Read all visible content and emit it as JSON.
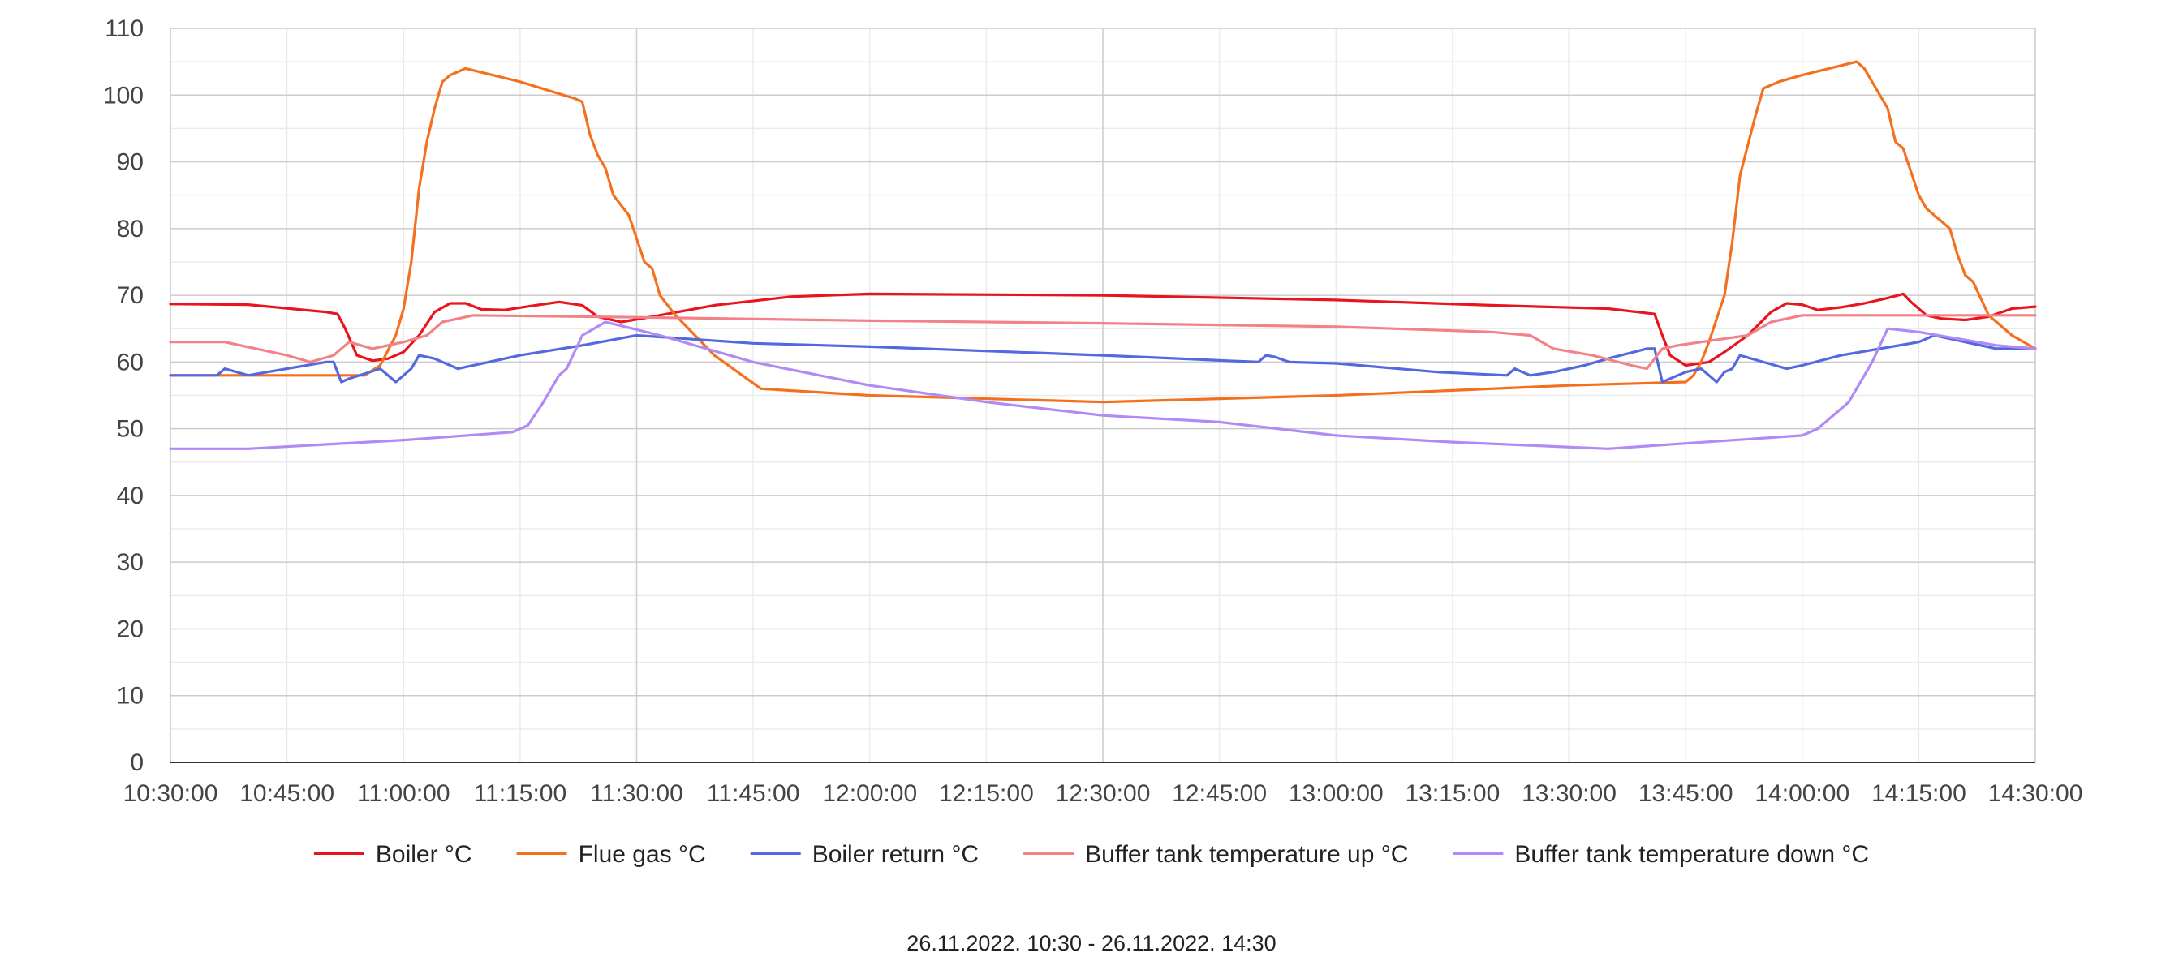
{
  "chart_data": {
    "type": "line",
    "title": "",
    "xlabel": "",
    "ylabel": "",
    "ylim": [
      0,
      110
    ],
    "yticks": [
      0,
      10,
      20,
      30,
      40,
      50,
      60,
      70,
      80,
      90,
      100,
      110
    ],
    "xlim": [
      "10:30:00",
      "14:30:00"
    ],
    "xticks": [
      "10:30:00",
      "10:45:00",
      "11:00:00",
      "11:15:00",
      "11:30:00",
      "11:45:00",
      "12:00:00",
      "12:15:00",
      "12:30:00",
      "12:45:00",
      "13:00:00",
      "13:15:00",
      "13:30:00",
      "13:45:00",
      "14:00:00",
      "14:15:00",
      "14:30:00"
    ],
    "grid": true,
    "legend_position": "bottom",
    "series": [
      {
        "name": "Boiler °C",
        "color": "#e8141e",
        "points": [
          [
            "10:30:00",
            68.7
          ],
          [
            "10:40:00",
            68.6
          ],
          [
            "10:50:00",
            67.5
          ],
          [
            "10:51:30",
            67.2
          ],
          [
            "10:52:30",
            65
          ],
          [
            "10:54:00",
            61
          ],
          [
            "10:56:00",
            60.2
          ],
          [
            "10:58:00",
            60.5
          ],
          [
            "11:00:00",
            61.5
          ],
          [
            "11:02:00",
            64
          ],
          [
            "11:04:00",
            67.5
          ],
          [
            "11:06:00",
            68.8
          ],
          [
            "11:08:00",
            68.8
          ],
          [
            "11:10:00",
            67.9
          ],
          [
            "11:13:00",
            67.8
          ],
          [
            "11:17:00",
            68.5
          ],
          [
            "11:20:00",
            69
          ],
          [
            "11:23:00",
            68.5
          ],
          [
            "11:25:00",
            66.8
          ],
          [
            "11:28:00",
            66
          ],
          [
            "11:32:00",
            66.8
          ],
          [
            "11:40:00",
            68.5
          ],
          [
            "11:50:00",
            69.8
          ],
          [
            "12:00:00",
            70.2
          ],
          [
            "12:30:00",
            70
          ],
          [
            "13:00:00",
            69.3
          ],
          [
            "13:20:00",
            68.5
          ],
          [
            "13:35:00",
            68
          ],
          [
            "13:41:00",
            67.2
          ],
          [
            "13:42:00",
            64
          ],
          [
            "13:43:00",
            61
          ],
          [
            "13:45:00",
            59.5
          ],
          [
            "13:48:00",
            60
          ],
          [
            "13:50:00",
            61.5
          ],
          [
            "13:53:00",
            64
          ],
          [
            "13:56:00",
            67.5
          ],
          [
            "13:58:00",
            68.8
          ],
          [
            "14:00:00",
            68.6
          ],
          [
            "14:02:00",
            67.8
          ],
          [
            "14:05:00",
            68.2
          ],
          [
            "14:08:00",
            68.8
          ],
          [
            "14:11:00",
            69.6
          ],
          [
            "14:13:00",
            70.2
          ],
          [
            "14:14:00",
            69
          ],
          [
            "14:16:00",
            67
          ],
          [
            "14:18:00",
            66.5
          ],
          [
            "14:21:00",
            66.3
          ],
          [
            "14:24:00",
            66.8
          ],
          [
            "14:27:00",
            68
          ],
          [
            "14:30:00",
            68.3
          ]
        ]
      },
      {
        "name": "Flue gas °C",
        "color": "#f5701e",
        "points": [
          [
            "10:30:00",
            58
          ],
          [
            "10:55:00",
            58
          ],
          [
            "10:57:00",
            59.5
          ],
          [
            "10:59:00",
            64
          ],
          [
            "11:00:00",
            68
          ],
          [
            "11:01:00",
            75
          ],
          [
            "11:02:00",
            86
          ],
          [
            "11:03:00",
            93
          ],
          [
            "11:04:00",
            98
          ],
          [
            "11:05:00",
            102
          ],
          [
            "11:06:00",
            103
          ],
          [
            "11:07:00",
            103.5
          ],
          [
            "11:08:00",
            104
          ],
          [
            "11:15:00",
            102
          ],
          [
            "11:22:00",
            99.5
          ],
          [
            "11:23:00",
            99
          ],
          [
            "11:24:00",
            94
          ],
          [
            "11:25:00",
            91
          ],
          [
            "11:26:00",
            89
          ],
          [
            "11:27:00",
            85
          ],
          [
            "11:29:00",
            82
          ],
          [
            "11:31:00",
            75
          ],
          [
            "11:32:00",
            74
          ],
          [
            "11:33:00",
            70
          ],
          [
            "11:35:00",
            67
          ],
          [
            "11:40:00",
            61
          ],
          [
            "11:46:00",
            56
          ],
          [
            "12:00:00",
            55
          ],
          [
            "12:30:00",
            54
          ],
          [
            "13:00:00",
            55
          ],
          [
            "13:30:00",
            56.5
          ],
          [
            "13:45:00",
            57
          ],
          [
            "13:46:00",
            58
          ],
          [
            "13:47:00",
            60
          ],
          [
            "13:48:00",
            63
          ],
          [
            "13:50:00",
            70
          ],
          [
            "13:51:00",
            78
          ],
          [
            "13:52:00",
            88
          ],
          [
            "13:54:00",
            97
          ],
          [
            "13:55:00",
            101
          ],
          [
            "13:57:00",
            102
          ],
          [
            "14:00:00",
            103
          ],
          [
            "14:07:00",
            105
          ],
          [
            "14:08:00",
            104
          ],
          [
            "14:10:00",
            100
          ],
          [
            "14:11:00",
            98
          ],
          [
            "14:12:00",
            93
          ],
          [
            "14:13:00",
            92
          ],
          [
            "14:15:00",
            85
          ],
          [
            "14:16:00",
            83
          ],
          [
            "14:18:00",
            81
          ],
          [
            "14:19:00",
            80
          ],
          [
            "14:20:00",
            76
          ],
          [
            "14:21:00",
            73
          ],
          [
            "14:22:00",
            72
          ],
          [
            "14:24:00",
            67
          ],
          [
            "14:25:00",
            66
          ],
          [
            "14:27:00",
            64
          ],
          [
            "14:30:00",
            62
          ]
        ]
      },
      {
        "name": "Boiler return °C",
        "color": "#5468df",
        "points": [
          [
            "10:30:00",
            58
          ],
          [
            "10:36:00",
            58
          ],
          [
            "10:37:00",
            59
          ],
          [
            "10:40:00",
            58
          ],
          [
            "10:45:00",
            59
          ],
          [
            "10:50:00",
            60
          ],
          [
            "10:51:00",
            60
          ],
          [
            "10:52:00",
            57
          ],
          [
            "10:53:00",
            57.5
          ],
          [
            "10:57:00",
            59
          ],
          [
            "10:59:00",
            57
          ],
          [
            "11:00:00",
            58
          ],
          [
            "11:01:00",
            59
          ],
          [
            "11:02:00",
            61
          ],
          [
            "11:04:00",
            60.5
          ],
          [
            "11:07:00",
            59
          ],
          [
            "11:15:00",
            61
          ],
          [
            "11:23:00",
            62.5
          ],
          [
            "11:30:00",
            64
          ],
          [
            "11:45:00",
            62.8
          ],
          [
            "12:00:00",
            62.3
          ],
          [
            "12:30:00",
            61
          ],
          [
            "12:50:00",
            60
          ],
          [
            "12:51:00",
            61
          ],
          [
            "12:52:00",
            60.8
          ],
          [
            "12:54:00",
            60
          ],
          [
            "13:00:00",
            59.8
          ],
          [
            "13:13:00",
            58.5
          ],
          [
            "13:22:00",
            58
          ],
          [
            "13:23:00",
            59
          ],
          [
            "13:25:00",
            58
          ],
          [
            "13:28:00",
            58.5
          ],
          [
            "13:32:00",
            59.5
          ],
          [
            "13:35:00",
            60.5
          ],
          [
            "13:40:00",
            62
          ],
          [
            "13:41:00",
            62
          ],
          [
            "13:42:00",
            57
          ],
          [
            "13:43:00",
            57.5
          ],
          [
            "13:45:00",
            58.5
          ],
          [
            "13:47:00",
            59
          ],
          [
            "13:49:00",
            57
          ],
          [
            "13:50:00",
            58.5
          ],
          [
            "13:51:00",
            59
          ],
          [
            "13:52:00",
            61
          ],
          [
            "13:55:00",
            60
          ],
          [
            "13:58:00",
            59
          ],
          [
            "14:00:00",
            59.5
          ],
          [
            "14:05:00",
            61
          ],
          [
            "14:15:00",
            63
          ],
          [
            "14:17:00",
            64
          ],
          [
            "14:25:00",
            62
          ],
          [
            "14:30:00",
            62
          ]
        ]
      },
      {
        "name": "Buffer tank temperature up °C",
        "color": "#f38288",
        "points": [
          [
            "10:30:00",
            63
          ],
          [
            "10:37:00",
            63
          ],
          [
            "10:45:00",
            61
          ],
          [
            "10:48:00",
            60
          ],
          [
            "10:51:00",
            61
          ],
          [
            "10:53:00",
            63
          ],
          [
            "10:56:00",
            62
          ],
          [
            "11:00:00",
            63
          ],
          [
            "11:03:00",
            64
          ],
          [
            "11:05:00",
            66
          ],
          [
            "11:09:00",
            67
          ],
          [
            "11:30:00",
            66.7
          ],
          [
            "12:00:00",
            66.2
          ],
          [
            "12:30:00",
            65.8
          ],
          [
            "13:00:00",
            65.3
          ],
          [
            "13:20:00",
            64.5
          ],
          [
            "13:25:00",
            64
          ],
          [
            "13:28:00",
            62
          ],
          [
            "13:33:00",
            61
          ],
          [
            "13:38:00",
            59.5
          ],
          [
            "13:40:00",
            59
          ],
          [
            "13:42:00",
            62
          ],
          [
            "13:44:00",
            62.5
          ],
          [
            "13:50:00",
            63.5
          ],
          [
            "13:53:00",
            64
          ],
          [
            "13:56:00",
            66
          ],
          [
            "14:00:00",
            67
          ],
          [
            "14:30:00",
            67
          ]
        ]
      },
      {
        "name": "Buffer tank temperature down °C",
        "color": "#b08af5",
        "points": [
          [
            "10:30:00",
            47
          ],
          [
            "10:40:00",
            47
          ],
          [
            "11:00:00",
            48.3
          ],
          [
            "11:14:00",
            49.5
          ],
          [
            "11:16:00",
            50.5
          ],
          [
            "11:18:00",
            54
          ],
          [
            "11:20:00",
            58
          ],
          [
            "11:21:00",
            59
          ],
          [
            "11:23:00",
            64
          ],
          [
            "11:26:00",
            66
          ],
          [
            "11:33:00",
            64
          ],
          [
            "11:45:00",
            60
          ],
          [
            "12:00:00",
            56.5
          ],
          [
            "12:15:00",
            54
          ],
          [
            "12:30:00",
            52
          ],
          [
            "12:45:00",
            51
          ],
          [
            "13:00:00",
            49
          ],
          [
            "13:15:00",
            48
          ],
          [
            "13:35:00",
            47
          ],
          [
            "13:45:00",
            47.8
          ],
          [
            "14:00:00",
            49
          ],
          [
            "14:02:00",
            50
          ],
          [
            "14:05:00",
            53
          ],
          [
            "14:06:00",
            54
          ],
          [
            "14:09:00",
            60
          ],
          [
            "14:11:00",
            65
          ],
          [
            "14:15:00",
            64.5
          ],
          [
            "14:25:00",
            62.5
          ],
          [
            "14:30:00",
            62
          ]
        ]
      }
    ]
  },
  "date_range": "26.11.2022. 10:30 - 26.11.2022. 14:30"
}
